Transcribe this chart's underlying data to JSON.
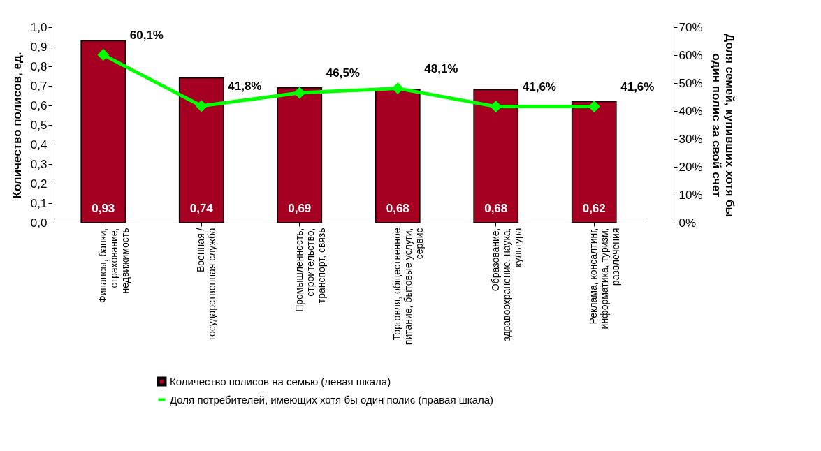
{
  "chart_data": {
    "type": "bar",
    "ylabel": "Количество полисов, ед.",
    "y2label": "Доля семей, купивших хотя бы один полис за свой счет",
    "categories": [
      "Финансы, банки, страхование, недвижимость",
      "Военная / государственная служба",
      "Промышленность, строительство, транспорт, связь",
      "Торговля, общественное питание, бытовые услуги, сервис",
      "Образование, здравоохранение, наука, культура",
      "Реклама, консалтинг, информатика, туризм, развлечения"
    ],
    "series": [
      {
        "name": "Количество полисов на семью (левая шкала)",
        "color": "#a50021",
        "values": [
          0.93,
          0.74,
          0.69,
          0.68,
          0.68,
          0.62
        ],
        "value_labels": [
          "0,93",
          "0,74",
          "0,69",
          "0,68",
          "0,68",
          "0,62"
        ]
      },
      {
        "name": "Доля потребителей, имеющих хотя бы один полис (правая шкала)",
        "type": "line",
        "axis": "y2",
        "color": "#00ff00",
        "marker": "diamond",
        "values": [
          60.1,
          41.8,
          46.5,
          48.1,
          41.6,
          41.6
        ],
        "value_labels": [
          "60,1%",
          "41,8%",
          "46,5%",
          "48,1%",
          "41,6%",
          "41,6%"
        ]
      }
    ],
    "ylim": [
      0,
      1
    ],
    "yticks": [
      {
        "value": 0,
        "label": "0,0"
      },
      {
        "value": 0.1,
        "label": "0,1"
      },
      {
        "value": 0.2,
        "label": "0,2"
      },
      {
        "value": 0.3,
        "label": "0,3"
      },
      {
        "value": 0.4,
        "label": "0,4"
      },
      {
        "value": 0.5,
        "label": "0,5"
      },
      {
        "value": 0.6,
        "label": "0,6"
      },
      {
        "value": 0.7,
        "label": "0,7"
      },
      {
        "value": 0.8,
        "label": "0,8"
      },
      {
        "value": 0.9,
        "label": "0,9"
      },
      {
        "value": 1,
        "label": "1,0"
      }
    ],
    "y2lim": [
      0,
      70
    ],
    "y2ticks": [
      {
        "value": 0,
        "label": "0%"
      },
      {
        "value": 10,
        "label": "10%"
      },
      {
        "value": 20,
        "label": "20%"
      },
      {
        "value": 30,
        "label": "30%"
      },
      {
        "value": 40,
        "label": "40%"
      },
      {
        "value": 50,
        "label": "50%"
      },
      {
        "value": 60,
        "label": "60%"
      },
      {
        "value": 70,
        "label": "70%"
      }
    ],
    "legend": "bottom"
  }
}
